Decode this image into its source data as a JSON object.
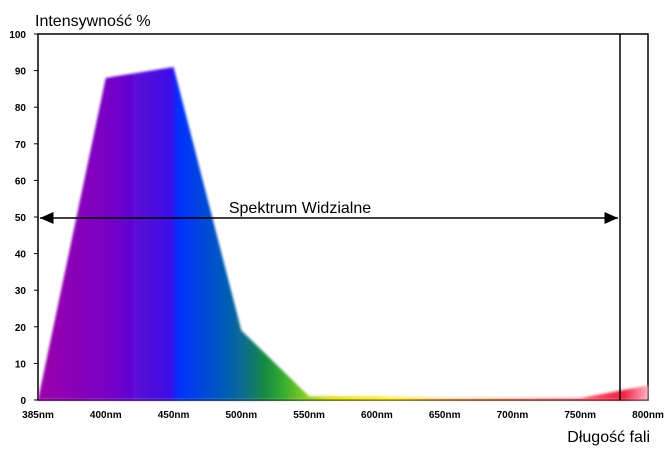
{
  "chart_data": {
    "type": "area",
    "title": "",
    "ylabel": "Intensywność %",
    "xlabel": "Długość fali",
    "ylim": [
      0,
      100
    ],
    "y_ticks": [
      "0",
      "10",
      "20",
      "30",
      "40",
      "50",
      "60",
      "70",
      "80",
      "90",
      "100"
    ],
    "x_tick_labels": [
      "385nm",
      "400nm",
      "450nm",
      "500nm",
      "550nm",
      "600nm",
      "650nm",
      "700nm",
      "750nm",
      "800nm"
    ],
    "grid": false,
    "series": [
      {
        "x": [
          "385nm",
          "400nm",
          "450nm",
          "500nm",
          "550nm",
          "600nm",
          "650nm",
          "700nm",
          "750nm",
          "800nm"
        ],
        "values": [
          0,
          88,
          91,
          19,
          1,
          1,
          0.5,
          0.5,
          0.5,
          4
        ]
      }
    ],
    "annotations": [
      {
        "text": "Spektrum Widzialne",
        "from": "385nm",
        "to": "~780nm",
        "y": 50
      }
    ],
    "gradient_colors": [
      "#9a00a8",
      "#5a00d8",
      "#0028ff",
      "#0050c0",
      "#1a8a3a",
      "#66cc22",
      "#dddd00",
      "#ffdd00",
      "#ee2244"
    ]
  }
}
